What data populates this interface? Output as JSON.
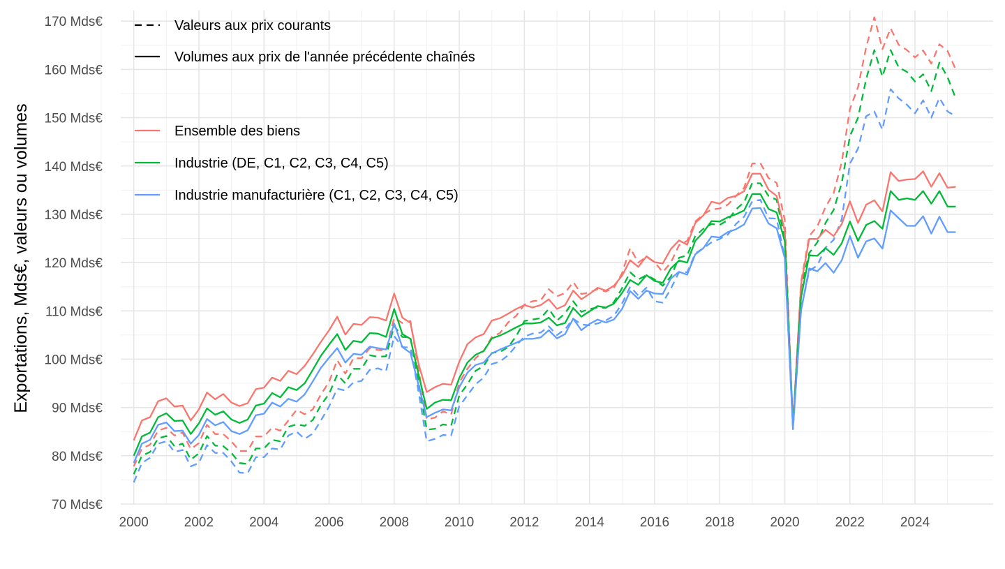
{
  "chart_data": {
    "type": "line",
    "title": "",
    "xlabel": "",
    "ylabel": "Exportations, Mds€, valeurs ou volumes",
    "xlim": [
      1999.6,
      2026.4
    ],
    "ylim": [
      70,
      170
    ],
    "x_ticks": [
      2000,
      2002,
      2004,
      2006,
      2008,
      2010,
      2012,
      2014,
      2016,
      2018,
      2020,
      2022,
      2024
    ],
    "x_tick_labels": [
      "2000",
      "2002",
      "2004",
      "2006",
      "2008",
      "2010",
      "2012",
      "2014",
      "2016",
      "2018",
      "2020",
      "2022",
      "2024"
    ],
    "y_ticks": [
      70,
      80,
      90,
      100,
      110,
      120,
      130,
      140,
      150,
      160,
      170
    ],
    "y_tick_labels": [
      "70 Mds€",
      "80 Mds€",
      "90 Mds€",
      "100 Mds€",
      "110 Mds€",
      "120 Mds€",
      "130 Mds€",
      "140 Mds€",
      "150 Mds€",
      "160 Mds€",
      "170 Mds€"
    ],
    "grid": true,
    "legend_position": "top-left inside",
    "linetype_legend": [
      {
        "label": "Valeurs aux prix courants",
        "dash": "dashed"
      },
      {
        "label": "Volumes aux prix de l'année précédente chaînés",
        "dash": "solid"
      }
    ],
    "color_legend": [
      {
        "label": "Ensemble des biens",
        "color": "#F8766D"
      },
      {
        "label": "Industrie (DE, C1, C2, C3, C4, C5)",
        "color": "#00BA38"
      },
      {
        "label": "Industrie manufacturière (C1, C2, C3, C4, C5)",
        "color": "#619CFF"
      }
    ],
    "x_start": 2000.0,
    "x_step": 0.25,
    "series": [
      {
        "name": "Ensemble des biens",
        "measure": "Volumes aux prix de l'année précédente chaînés",
        "color": "#F8766D",
        "dash": "solid",
        "values": [
          83.2,
          87.3,
          88.0,
          91.3,
          91.9,
          90.2,
          90.4,
          87.3,
          89.6,
          93.1,
          91.7,
          92.8,
          91.0,
          90.3,
          90.9,
          93.8,
          94.1,
          96.2,
          95.5,
          97.6,
          96.9,
          98.6,
          101.0,
          103.6,
          106.0,
          108.8,
          105.1,
          107.3,
          107.1,
          108.7,
          108.6,
          108.0,
          113.6,
          108.6,
          107.5,
          99.0,
          93.2,
          94.2,
          94.9,
          94.7,
          99.5,
          103.1,
          104.5,
          105.2,
          108.0,
          108.5,
          109.4,
          110.4,
          111.2,
          110.7,
          111.2,
          112.4,
          110.4,
          111.2,
          114.2,
          112.4,
          113.5,
          114.8,
          114.2,
          115.2,
          117.3,
          120.5,
          119.1,
          121.3,
          120.1,
          119.8,
          122.8,
          124.6,
          123.7,
          128.2,
          129.8,
          132.6,
          132.2,
          133.4,
          133.8,
          134.8,
          138.4,
          138.4,
          135.1,
          133.8,
          126.5,
          86.3,
          115.5,
          124.9,
          124.9,
          126.8,
          125.5,
          128.0,
          132.7,
          128.2,
          132.0,
          132.9,
          130.6,
          138.7,
          136.9,
          137.2,
          137.3,
          138.9,
          135.7,
          138.5,
          135.5,
          135.7
        ]
      },
      {
        "name": "Industrie (DE, C1, C2, C3, C4, C5)",
        "measure": "Volumes aux prix de l'année précédente chaînés",
        "color": "#00BA38",
        "dash": "solid",
        "values": [
          80.0,
          84.0,
          84.8,
          88.0,
          88.8,
          87.2,
          87.3,
          84.5,
          86.7,
          89.8,
          88.5,
          89.2,
          87.5,
          86.8,
          87.5,
          90.4,
          90.8,
          93.0,
          92.1,
          94.2,
          93.6,
          95.0,
          97.8,
          100.7,
          103.0,
          105.2,
          101.9,
          103.8,
          103.5,
          105.4,
          105.3,
          104.6,
          110.4,
          105.2,
          104.2,
          96.8,
          89.7,
          91.0,
          91.6,
          91.5,
          96.1,
          99.3,
          100.9,
          101.7,
          104.3,
          104.9,
          105.7,
          106.6,
          107.4,
          107.4,
          107.6,
          108.6,
          107.0,
          107.5,
          110.6,
          108.8,
          109.9,
          111.0,
          110.7,
          111.5,
          113.7,
          116.4,
          115.4,
          117.4,
          116.2,
          115.8,
          118.8,
          120.4,
          120.0,
          124.5,
          126.3,
          128.6,
          128.5,
          129.4,
          130.0,
          130.8,
          134.2,
          134.2,
          131.1,
          130.4,
          124.4,
          86.1,
          112.8,
          121.5,
          121.4,
          123.0,
          121.6,
          124.0,
          128.5,
          124.5,
          127.8,
          128.6,
          127.0,
          134.8,
          133.0,
          133.3,
          133.0,
          134.8,
          132.2,
          134.8,
          131.6,
          131.6
        ]
      },
      {
        "name": "Industrie manufacturière (C1, C2, C3, C4, C5)",
        "measure": "Volumes aux prix de l'année précédente chaînés",
        "color": "#619CFF",
        "dash": "solid",
        "values": [
          78.5,
          82.5,
          83.3,
          86.4,
          86.9,
          85.1,
          85.2,
          82.5,
          84.3,
          87.6,
          86.3,
          87.0,
          85.1,
          84.5,
          85.3,
          88.4,
          88.7,
          91.0,
          90.2,
          91.8,
          91.2,
          92.7,
          95.4,
          98.2,
          100.3,
          102.3,
          99.3,
          101.1,
          100.9,
          102.6,
          102.3,
          102.0,
          107.4,
          102.5,
          101.3,
          94.6,
          88.0,
          88.9,
          89.6,
          89.4,
          94.2,
          97.2,
          98.8,
          99.3,
          101.2,
          102.0,
          102.7,
          103.4,
          104.2,
          104.2,
          104.5,
          106.0,
          104.3,
          105.2,
          108.4,
          106.0,
          107.3,
          108.2,
          107.6,
          108.2,
          110.4,
          114.1,
          112.5,
          114.2,
          113.6,
          113.5,
          116.7,
          118.1,
          117.5,
          121.7,
          123.0,
          125.4,
          125.2,
          126.3,
          126.9,
          127.9,
          131.2,
          131.3,
          128.1,
          127.1,
          120.9,
          85.7,
          110.1,
          118.8,
          118.2,
          119.9,
          117.9,
          120.5,
          125.5,
          121.0,
          124.4,
          125.0,
          122.9,
          130.8,
          129.2,
          127.6,
          127.6,
          129.6,
          126.0,
          129.5,
          126.3,
          126.3
        ]
      },
      {
        "name": "Ensemble des biens",
        "measure": "Valeurs aux prix courants",
        "color": "#F8766D",
        "dash": "dashed",
        "values": [
          77.8,
          81.5,
          82.3,
          85.2,
          85.8,
          84.2,
          84.8,
          81.4,
          82.6,
          86.4,
          84.5,
          84.5,
          83.0,
          81.0,
          81.0,
          84.0,
          84.0,
          85.8,
          85.2,
          87.3,
          89.5,
          88.6,
          89.6,
          92.7,
          95.3,
          99.8,
          97.0,
          100.2,
          100.2,
          102.3,
          101.9,
          101.8,
          108.6,
          107.5,
          107.9,
          97.8,
          87.5,
          87.9,
          89.2,
          88.5,
          95.2,
          98.0,
          100.2,
          101.7,
          104.6,
          105.4,
          107.6,
          109.0,
          111.3,
          112.0,
          112.2,
          114.5,
          113.0,
          113.7,
          116.0,
          113.5,
          113.8,
          114.5,
          114.0,
          114.8,
          117.8,
          123.0,
          120.0,
          121.2,
          120.1,
          118.0,
          120.0,
          123.6,
          124.5,
          128.5,
          130.0,
          131.0,
          131.2,
          132.0,
          133.8,
          135.5,
          140.5,
          140.6,
          137.5,
          136.5,
          128.8,
          86.2,
          116.0,
          125.5,
          127.5,
          131.5,
          134.4,
          140.8,
          151.8,
          156.3,
          164.6,
          170.8,
          164.2,
          168.5,
          165.1,
          164.0,
          162.5,
          163.9,
          161.2,
          165.2,
          163.8,
          160.0
        ]
      },
      {
        "name": "Industrie (DE, C1, C2, C3, C4, C5)",
        "measure": "Valeurs aux prix courants",
        "color": "#00BA38",
        "dash": "dashed",
        "values": [
          76.2,
          80.0,
          80.8,
          83.6,
          84.1,
          82.0,
          82.5,
          79.2,
          80.5,
          84.1,
          82.1,
          82.0,
          80.6,
          78.5,
          78.3,
          81.5,
          81.5,
          83.3,
          83.0,
          86.0,
          86.5,
          86.2,
          87.4,
          90.5,
          92.8,
          96.8,
          95.0,
          98.0,
          98.0,
          100.8,
          100.5,
          100.6,
          106.9,
          104.6,
          104.5,
          95.2,
          85.4,
          85.6,
          86.5,
          86.2,
          92.5,
          94.8,
          97.6,
          98.6,
          101.3,
          101.5,
          102.5,
          104.8,
          107.9,
          108.2,
          108.5,
          110.4,
          108.0,
          109.5,
          112.0,
          109.8,
          110.4,
          110.7,
          110.6,
          111.8,
          114.7,
          118.0,
          116.5,
          117.4,
          116.5,
          115.2,
          117.1,
          121.0,
          121.5,
          125.5,
          127.0,
          128.0,
          127.8,
          128.8,
          131.0,
          132.5,
          136.5,
          136.4,
          133.8,
          133.0,
          124.9,
          86.0,
          114.8,
          122.0,
          124.2,
          128.2,
          130.9,
          136.5,
          146.2,
          150.0,
          158.0,
          164.0,
          158.5,
          164.0,
          160.4,
          159.5,
          157.5,
          159.0,
          155.5,
          161.4,
          158.4,
          154.0
        ]
      },
      {
        "name": "Industrie manufacturière (C1, C2, C3, C4, C5)",
        "measure": "Valeurs aux prix courants",
        "color": "#619CFF",
        "dash": "dashed",
        "values": [
          74.5,
          78.5,
          79.6,
          82.5,
          83.0,
          80.8,
          81.2,
          77.8,
          78.5,
          82.2,
          80.6,
          80.6,
          78.8,
          76.5,
          76.4,
          79.7,
          79.7,
          81.5,
          81.3,
          84.2,
          85.0,
          83.5,
          84.6,
          87.3,
          90.2,
          93.9,
          93.5,
          95.2,
          95.5,
          97.8,
          98.1,
          97.5,
          104.8,
          102.5,
          102.4,
          93.2,
          83.0,
          83.5,
          84.3,
          84.2,
          90.3,
          92.5,
          94.8,
          96.2,
          99.0,
          99.5,
          100.8,
          102.8,
          104.7,
          105.3,
          105.5,
          106.8,
          105.0,
          106.2,
          108.4,
          107.2,
          107.0,
          107.4,
          108.0,
          109.0,
          111.5,
          115.0,
          113.2,
          114.8,
          112.0,
          111.7,
          114.6,
          118.0,
          118.0,
          121.9,
          123.0,
          124.2,
          124.9,
          125.8,
          128.0,
          129.5,
          132.7,
          133.0,
          129.2,
          129.1,
          121.0,
          85.5,
          110.3,
          118.3,
          119.4,
          123.1,
          124.7,
          129.0,
          140.5,
          143.6,
          150.3,
          151.3,
          147.5,
          155.9,
          154.0,
          152.7,
          150.9,
          153.6,
          150.0,
          154.1,
          151.3,
          150.3
        ]
      }
    ]
  }
}
